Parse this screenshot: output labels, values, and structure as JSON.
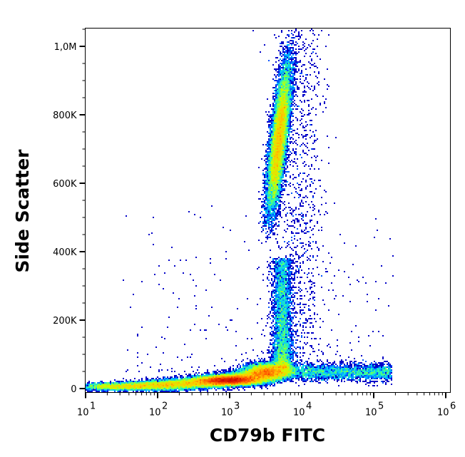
{
  "chart_data": {
    "type": "heatmap",
    "subtype": "flow-cytometry density dot plot",
    "xlabel": "CD79b FITC",
    "ylabel": "Side Scatter",
    "x_scale": "log",
    "xlim": [
      10,
      1200000
    ],
    "x_ticks": [
      {
        "value": 10,
        "base": "10",
        "exp": "1"
      },
      {
        "value": 100,
        "base": "10",
        "exp": "2"
      },
      {
        "value": 1000,
        "base": "10",
        "exp": "3"
      },
      {
        "value": 10000,
        "base": "10",
        "exp": "4"
      },
      {
        "value": 100000,
        "base": "10",
        "exp": "5"
      },
      {
        "value": 1000000,
        "base": "10",
        "exp": "6"
      }
    ],
    "y_scale": "linear",
    "ylim": [
      -10000,
      1067000
    ],
    "y_ticks": [
      {
        "value": 0,
        "label": "0"
      },
      {
        "value": 200000,
        "label": "200K"
      },
      {
        "value": 400000,
        "label": "400K"
      },
      {
        "value": 600000,
        "label": "600K"
      },
      {
        "value": 800000,
        "label": "800K"
      },
      {
        "value": 1000000,
        "label": "1,0M"
      }
    ],
    "colormap": [
      "#0000c8",
      "#0050ff",
      "#00c8ff",
      "#40ff90",
      "#c8ff00",
      "#ffc800",
      "#ff5000",
      "#c80000"
    ],
    "grid": false,
    "populations": [
      {
        "description_of_shape": "diagonal low-SSC band",
        "x_range": [
          10,
          6000
        ],
        "y_center": 25000,
        "peak_x": 1000,
        "peak_y": 25000,
        "relative_density": "highest"
      },
      {
        "description_of_shape": "vertical stream",
        "x_center": 5600,
        "y_range": [
          60000,
          350000
        ],
        "relative_density": "medium"
      },
      {
        "description_of_shape": "tilted high-SSC cluster",
        "x_range": [
          3500,
          7000
        ],
        "y_range": [
          420000,
          1000000
        ],
        "peak_x": 4000,
        "peak_y": 600000,
        "relative_density": "high"
      },
      {
        "description_of_shape": "horizontal arm",
        "x_range": [
          10000,
          160000
        ],
        "y_center": 50000,
        "relative_density": "low"
      }
    ]
  }
}
